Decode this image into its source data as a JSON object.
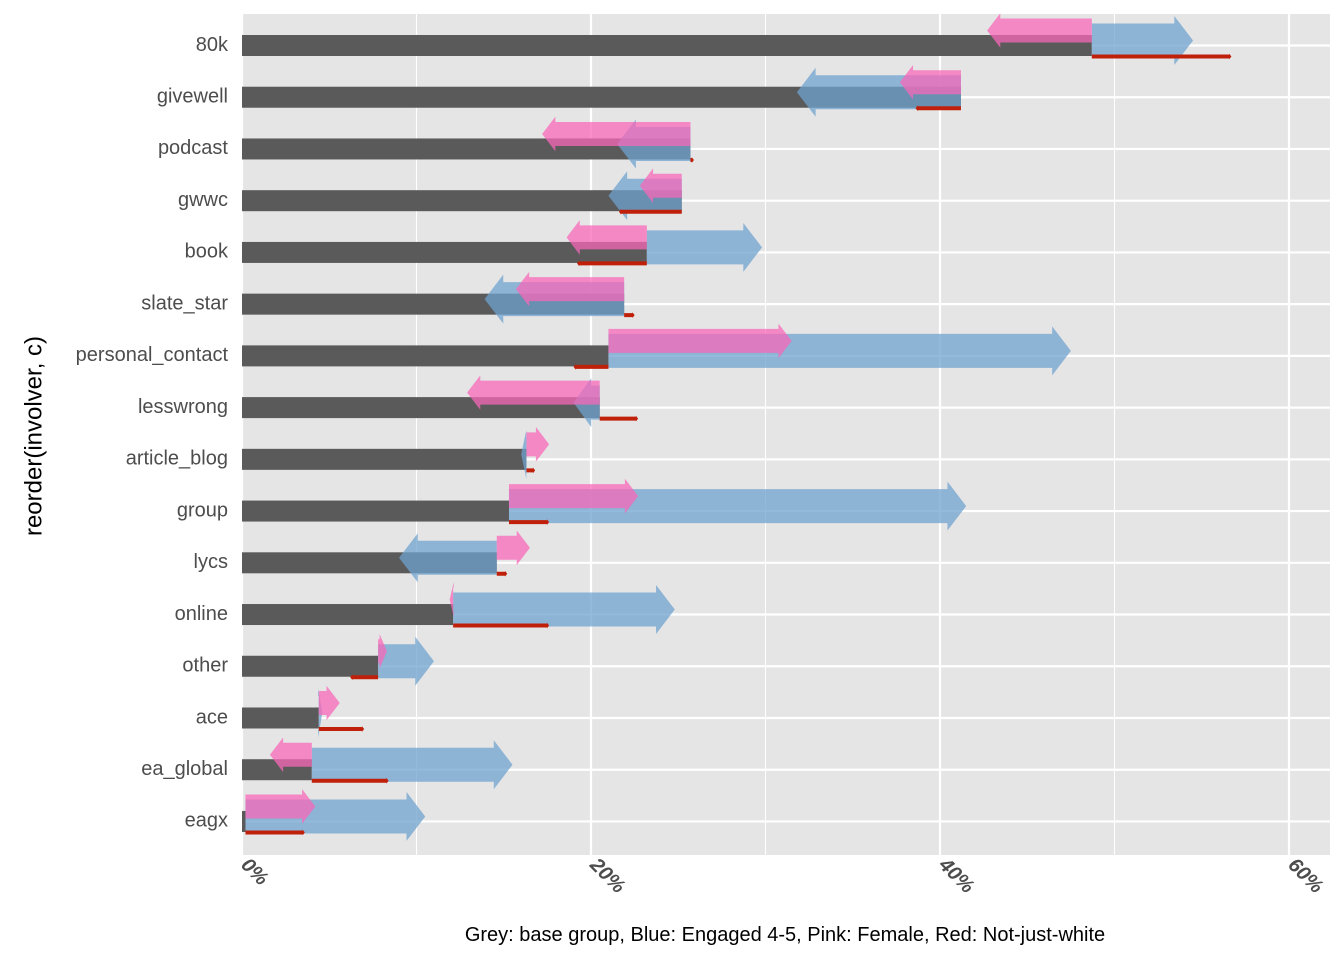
{
  "chart_data": {
    "type": "bar",
    "ylabel": "reorder(involver, c)",
    "xlabel": "",
    "caption": "Grey: base group, Blue: Engaged 4-5, Pink: Female, Red: Not-just-white",
    "xlim": [
      0,
      62
    ],
    "xticks": [
      0,
      20,
      40,
      60
    ],
    "xtick_labels": [
      "0%",
      "20%",
      "40%",
      "60%"
    ],
    "grid": true,
    "colors": {
      "base": "#5a5a5a",
      "engaged": "#6fa2cf",
      "female": "#f768b8",
      "nonwhite": "#c0200a",
      "panel": "#e5e5e5"
    },
    "categories": [
      "80k",
      "givewell",
      "podcast",
      "gwwc",
      "book",
      "slate_star",
      "personal_contact",
      "lesswrong",
      "article_blog",
      "group",
      "lycs",
      "online",
      "other",
      "ace",
      "ea_global",
      "eagx"
    ],
    "series": [
      {
        "name": "base group",
        "values": [
          48.7,
          41.2,
          25.7,
          25.2,
          23.2,
          21.9,
          21.0,
          20.5,
          16.3,
          15.3,
          14.6,
          12.1,
          7.8,
          4.4,
          4.0,
          0.2
        ]
      },
      {
        "name": "Engaged 4-5",
        "values": [
          54.5,
          31.8,
          21.5,
          21.0,
          29.8,
          13.9,
          47.5,
          19.0,
          16.0,
          41.5,
          9.0,
          24.8,
          11.0,
          4.6,
          15.5,
          10.5
        ]
      },
      {
        "name": "Female",
        "values": [
          42.7,
          37.7,
          17.2,
          22.8,
          18.6,
          15.7,
          31.5,
          12.9,
          17.6,
          22.7,
          16.5,
          11.9,
          8.3,
          5.6,
          1.6,
          4.2
        ]
      },
      {
        "name": "Not-just-white",
        "values": [
          56.7,
          38.6,
          25.9,
          21.6,
          19.2,
          22.5,
          19.0,
          22.7,
          16.8,
          17.6,
          15.2,
          17.6,
          6.2,
          7.0,
          8.4,
          3.6
        ]
      }
    ]
  }
}
